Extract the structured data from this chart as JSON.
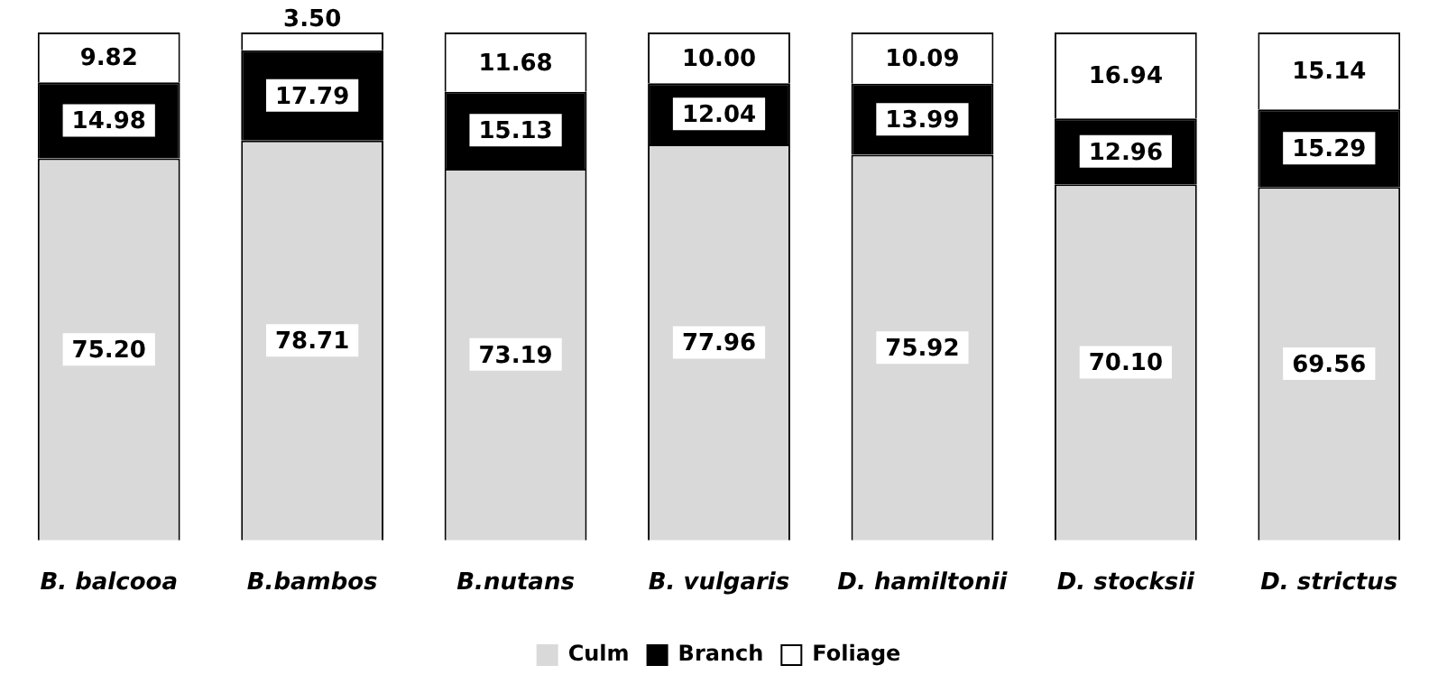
{
  "chart_data": {
    "type": "bar",
    "stacked": true,
    "categories": [
      "B. balcooa",
      "B.bambos",
      "B.nutans",
      "B. vulgaris",
      "D. hamiltonii",
      "D. stocksii",
      "D. strictus"
    ],
    "series": [
      {
        "name": "Culm",
        "color": "#d9d9d9",
        "values": [
          75.2,
          78.71,
          73.19,
          77.96,
          75.92,
          70.1,
          69.56
        ],
        "value_labels": [
          "75.20",
          "78.71",
          "73.19",
          "77.96",
          "75.92",
          "70.10",
          "69.56"
        ]
      },
      {
        "name": "Branch",
        "color": "#000000",
        "values": [
          14.98,
          17.79,
          15.13,
          12.04,
          13.99,
          12.96,
          15.29
        ],
        "value_labels": [
          "14.98",
          "17.79",
          "15.13",
          "12.04",
          "13.99",
          "12.96",
          "15.29"
        ]
      },
      {
        "name": "Foliage",
        "color": "#ffffff",
        "values": [
          9.82,
          3.5,
          11.68,
          10.0,
          10.09,
          16.94,
          15.14
        ],
        "value_labels": [
          "9.82",
          "3.50",
          "11.68",
          "10.00",
          "10.09",
          "16.94",
          "15.14"
        ]
      }
    ],
    "ylim": [
      0,
      100
    ],
    "tick_labels": "x",
    "grid": false,
    "legend": "bottom"
  }
}
